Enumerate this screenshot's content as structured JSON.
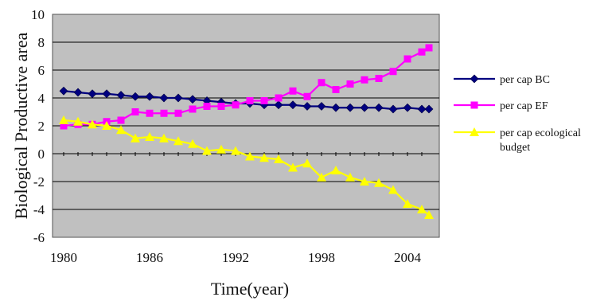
{
  "chart_data": {
    "type": "line",
    "title": "",
    "xlabel": "Time(year)",
    "ylabel": "Biological Productive area",
    "xlim": [
      1980,
      2005
    ],
    "ylim": [
      -6,
      10
    ],
    "x_ticks": [
      1980,
      1986,
      1992,
      1998,
      2004
    ],
    "y_ticks": [
      10,
      8,
      6,
      4,
      2,
      0,
      -2,
      -4,
      -6
    ],
    "grid": true,
    "legend_position": "right",
    "plot_background": "#c0c0c0",
    "x": [
      1980,
      1981,
      1982,
      1983,
      1984,
      1985,
      1986,
      1987,
      1988,
      1989,
      1990,
      1991,
      1992,
      1993,
      1994,
      1995,
      1996,
      1997,
      1998,
      1999,
      2000,
      2001,
      2002,
      2003,
      2004,
      2005
    ],
    "series": [
      {
        "name": "per cap BC",
        "color": "#000080",
        "marker": "diamond",
        "values": [
          4.5,
          4.4,
          4.3,
          4.3,
          4.2,
          4.1,
          4.1,
          4.0,
          4.0,
          3.9,
          3.8,
          3.7,
          3.6,
          3.6,
          3.5,
          3.5,
          3.5,
          3.4,
          3.4,
          3.3,
          3.3,
          3.3,
          3.3,
          3.2,
          3.3,
          3.2
        ]
      },
      {
        "name": "per cap EF",
        "color": "#ff00ff",
        "marker": "square",
        "values": [
          2.0,
          2.1,
          2.1,
          2.3,
          2.4,
          3.0,
          2.9,
          2.9,
          2.9,
          3.2,
          3.4,
          3.4,
          3.5,
          3.8,
          3.8,
          4.0,
          4.5,
          4.1,
          5.1,
          4.6,
          5.0,
          5.3,
          5.4,
          5.9,
          6.8,
          7.3
        ]
      },
      {
        "name": "per cap ecological budget",
        "color": "#ffff00",
        "marker": "triangle",
        "values": [
          2.4,
          2.3,
          2.1,
          2.0,
          1.7,
          1.1,
          1.2,
          1.1,
          0.9,
          0.7,
          0.2,
          0.3,
          0.2,
          -0.2,
          -0.3,
          -0.4,
          -1.0,
          -0.7,
          -1.7,
          -1.2,
          -1.7,
          -2.0,
          -2.1,
          -2.6,
          -3.6,
          -4.0
        ]
      }
    ],
    "extra_points": {
      "per cap BC": [
        3.2
      ],
      "per cap EF": [
        7.6
      ],
      "per cap ecological budget": [
        -4.4
      ]
    }
  }
}
